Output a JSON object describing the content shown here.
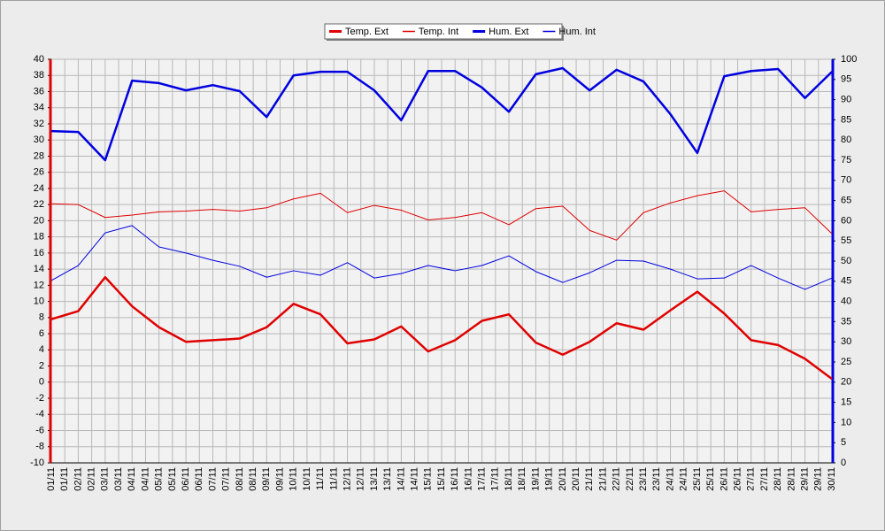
{
  "chart_data": {
    "type": "line",
    "categories": [
      "01/11",
      "02/11",
      "03/11",
      "04/11",
      "05/11",
      "06/11",
      "07/11",
      "08/11",
      "09/11",
      "10/11",
      "11/11",
      "12/11",
      "13/11",
      "14/11",
      "15/11",
      "16/11",
      "17/11",
      "18/11",
      "19/11",
      "20/11",
      "21/11",
      "22/11",
      "23/11",
      "24/11",
      "25/11",
      "26/11",
      "27/11",
      "28/11",
      "29/11",
      "30/11"
    ],
    "xlim": [
      0,
      29
    ],
    "xticks": [
      {
        "value": 0,
        "label": "01/11"
      },
      {
        "value": 0.5,
        "label": "01/11"
      },
      {
        "value": 1,
        "label": "02/11"
      },
      {
        "value": 1.5,
        "label": "02/11"
      },
      {
        "value": 2,
        "label": "03/11"
      },
      {
        "value": 2.5,
        "label": "03/11"
      },
      {
        "value": 3,
        "label": "04/11"
      },
      {
        "value": 3.5,
        "label": "04/11"
      },
      {
        "value": 4,
        "label": "05/11"
      },
      {
        "value": 4.5,
        "label": "05/11"
      },
      {
        "value": 5,
        "label": "06/11"
      },
      {
        "value": 5.5,
        "label": "06/11"
      },
      {
        "value": 6,
        "label": "07/11"
      },
      {
        "value": 6.5,
        "label": "07/11"
      },
      {
        "value": 7,
        "label": "08/11"
      },
      {
        "value": 7.5,
        "label": "08/11"
      },
      {
        "value": 8,
        "label": "09/11"
      },
      {
        "value": 8.5,
        "label": "09/11"
      },
      {
        "value": 9,
        "label": "10/11"
      },
      {
        "value": 9.5,
        "label": "10/11"
      },
      {
        "value": 10,
        "label": "11/11"
      },
      {
        "value": 10.5,
        "label": "11/11"
      },
      {
        "value": 11,
        "label": "12/11"
      },
      {
        "value": 11.5,
        "label": "12/11"
      },
      {
        "value": 12,
        "label": "13/11"
      },
      {
        "value": 12.5,
        "label": "13/11"
      },
      {
        "value": 13,
        "label": "14/11"
      },
      {
        "value": 13.5,
        "label": "14/11"
      },
      {
        "value": 14,
        "label": "15/11"
      },
      {
        "value": 14.5,
        "label": "15/11"
      },
      {
        "value": 15,
        "label": "16/11"
      },
      {
        "value": 15.5,
        "label": "16/11"
      },
      {
        "value": 16,
        "label": "17/11"
      },
      {
        "value": 16.5,
        "label": "17/11"
      },
      {
        "value": 17,
        "label": "18/11"
      },
      {
        "value": 17.5,
        "label": "18/11"
      },
      {
        "value": 18,
        "label": "19/11"
      },
      {
        "value": 18.5,
        "label": "19/11"
      },
      {
        "value": 19,
        "label": "20/11"
      },
      {
        "value": 19.5,
        "label": "20/11"
      },
      {
        "value": 20,
        "label": "21/11"
      },
      {
        "value": 20.5,
        "label": "21/11"
      },
      {
        "value": 21,
        "label": "22/11"
      },
      {
        "value": 21.5,
        "label": "22/11"
      },
      {
        "value": 22,
        "label": "23/11"
      },
      {
        "value": 22.5,
        "label": "23/11"
      },
      {
        "value": 23,
        "label": "24/11"
      },
      {
        "value": 23.5,
        "label": "24/11"
      },
      {
        "value": 24,
        "label": "25/11"
      },
      {
        "value": 24.5,
        "label": "25/11"
      },
      {
        "value": 25,
        "label": "26/11"
      },
      {
        "value": 25.5,
        "label": "26/11"
      },
      {
        "value": 26,
        "label": "27/11"
      },
      {
        "value": 26.5,
        "label": "27/11"
      },
      {
        "value": 27,
        "label": "28/11"
      },
      {
        "value": 27.5,
        "label": "28/11"
      },
      {
        "value": 28,
        "label": "29/11"
      },
      {
        "value": 28.5,
        "label": "29/11"
      },
      {
        "value": 29,
        "label": "30/11"
      }
    ],
    "ylim": [
      -10,
      40
    ],
    "yticks": [
      -10,
      -8,
      -6,
      -4,
      -2,
      0,
      2,
      4,
      6,
      8,
      10,
      12,
      14,
      16,
      18,
      20,
      22,
      24,
      26,
      28,
      30,
      32,
      34,
      36,
      38,
      40
    ],
    "y2lim": [
      0,
      100
    ],
    "y2ticks": [
      0,
      5,
      10,
      15,
      20,
      25,
      30,
      35,
      40,
      45,
      50,
      55,
      60,
      65,
      70,
      75,
      80,
      85,
      90,
      95,
      100
    ],
    "grid": true,
    "legend": "top",
    "series": [
      {
        "name": "Temp. Ext",
        "color": "#e00000",
        "line_width": 2.5,
        "axis": "y",
        "values": [
          7.8,
          8.8,
          13,
          9.4,
          6.8,
          5,
          5.2,
          5.4,
          6.8,
          9.7,
          8.4,
          4.8,
          5.3,
          6.9,
          3.8,
          5.2,
          7.6,
          8.4,
          4.9,
          3.4,
          5,
          7.3,
          6.5,
          8.9,
          11.2,
          8.5,
          5.2,
          4.6,
          2.9,
          0.4
        ]
      },
      {
        "name": "Temp. Int",
        "color": "#e00000",
        "line_width": 1,
        "axis": "y",
        "values": [
          22.1,
          22,
          20.4,
          20.7,
          21.1,
          21.2,
          21.4,
          21.2,
          21.6,
          22.7,
          23.4,
          21,
          21.9,
          21.3,
          20.1,
          20.4,
          21,
          19.5,
          21.5,
          21.8,
          18.8,
          17.6,
          21,
          22.2,
          23.1,
          23.7,
          21.1,
          21.4,
          21.6,
          18.4
        ]
      },
      {
        "name": "Hum. Ext",
        "color": "#0000e0",
        "line_width": 2.5,
        "axis": "y2",
        "values": [
          82.2,
          82,
          75,
          94.7,
          94.1,
          92.3,
          93.6,
          92.1,
          85.7,
          96,
          96.9,
          96.9,
          92.3,
          84.9,
          97.1,
          97.1,
          93,
          87,
          96.3,
          97.8,
          92.3,
          97.4,
          94.5,
          86.4,
          76.8,
          95.8,
          97.1,
          97.6,
          90.4,
          96.9
        ]
      },
      {
        "name": "Hum. Int",
        "color": "#0000e0",
        "line_width": 1,
        "axis": "y2",
        "values": [
          45.2,
          48.9,
          57,
          58.8,
          53.5,
          52,
          50.2,
          48.7,
          46,
          47.6,
          46.5,
          49.6,
          45.8,
          46.9,
          48.9,
          47.6,
          48.9,
          51.3,
          47.4,
          44.7,
          47.1,
          50.2,
          50,
          48,
          45.6,
          45.8,
          48.9,
          45.8,
          43,
          45.8
        ]
      }
    ]
  }
}
